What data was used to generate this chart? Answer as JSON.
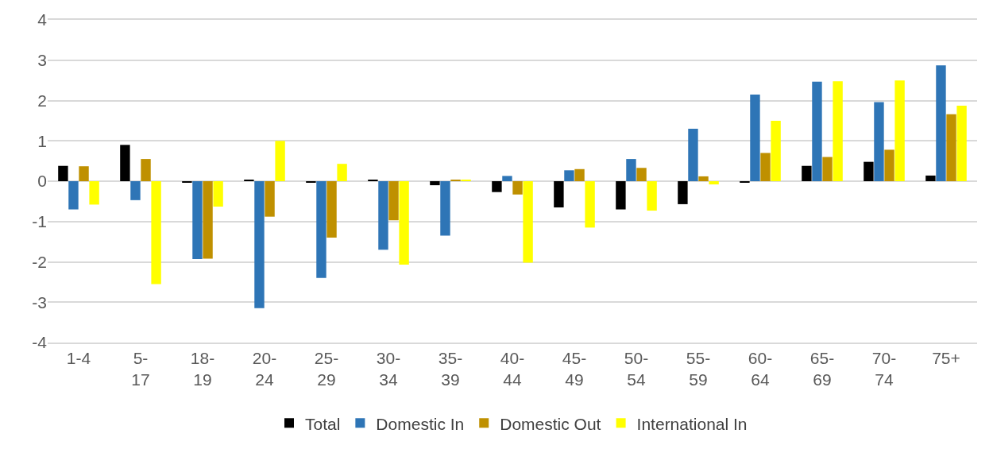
{
  "chart_data": {
    "type": "bar",
    "categories": [
      "1-4",
      "5-17",
      "18-19",
      "20-24",
      "25-29",
      "30-34",
      "35-39",
      "40-44",
      "45-49",
      "50-54",
      "55-59",
      "60-64",
      "65-69",
      "70-74",
      "75+"
    ],
    "series": [
      {
        "name": "Total",
        "color": "#000000",
        "values": [
          0.38,
          0.9,
          -0.02,
          0.03,
          -0.03,
          0.02,
          -0.1,
          -0.27,
          -0.65,
          -0.7,
          -0.57,
          -0.02,
          0.38,
          0.48,
          0.14
        ]
      },
      {
        "name": "Domestic In",
        "color": "#2e75b6",
        "values": [
          -0.7,
          -0.47,
          -1.93,
          -3.15,
          -2.4,
          -1.7,
          -1.35,
          0.13,
          0.27,
          0.55,
          1.3,
          2.15,
          2.47,
          1.96,
          2.87
        ]
      },
      {
        "name": "Domestic Out",
        "color": "#bf9000",
        "values": [
          0.37,
          0.55,
          -1.92,
          -0.88,
          -1.4,
          -0.97,
          0.03,
          -0.33,
          0.3,
          0.33,
          0.12,
          0.7,
          0.6,
          0.78,
          1.66
        ]
      },
      {
        "name": "International In",
        "color": "#ffff00",
        "values": [
          -0.58,
          -2.55,
          -0.63,
          1.0,
          0.43,
          -2.07,
          0.02,
          -2.02,
          -1.15,
          -0.73,
          -0.08,
          1.5,
          2.48,
          2.5,
          1.87
        ]
      }
    ],
    "ylim": [
      -4,
      4
    ],
    "yticks": [
      -4,
      -3,
      -2,
      -1,
      0,
      1,
      2,
      3,
      4
    ],
    "grid": "y",
    "legend": "bottom"
  }
}
